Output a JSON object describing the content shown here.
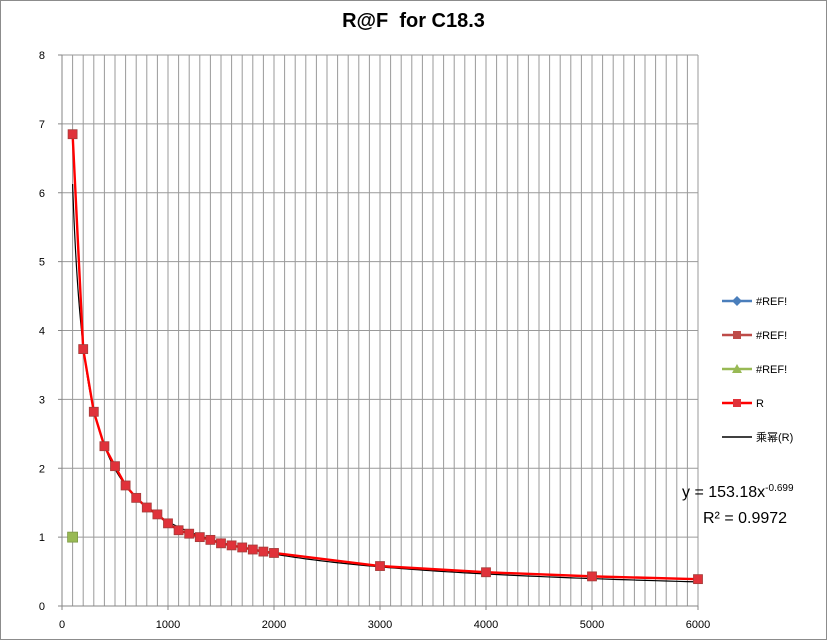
{
  "chart_data": {
    "type": "line",
    "title": "R@F  for C18.3",
    "xlim": [
      0,
      6000
    ],
    "ylim": [
      0,
      8
    ],
    "x_ticks": [
      0,
      1000,
      2000,
      3000,
      4000,
      5000,
      6000
    ],
    "y_ticks": [
      0,
      1,
      2,
      3,
      4,
      5,
      6,
      7,
      8
    ],
    "grid": {
      "vertical_every": 100,
      "horizontal_every": 1
    },
    "legend_placement": "right",
    "series": [
      {
        "name": "#REF!",
        "color": "#4a7ebb",
        "marker": "diamond",
        "x": [],
        "y": []
      },
      {
        "name": "#REF!",
        "color": "#be4b48",
        "marker": "square",
        "x": [],
        "y": []
      },
      {
        "name": "#REF!",
        "color": "#98b954",
        "marker": "triangle",
        "x": [
          100
        ],
        "y": [
          1.0
        ]
      },
      {
        "name": "R",
        "color": "#ff0000",
        "marker": "square",
        "x": [
          100,
          200,
          300,
          400,
          500,
          600,
          700,
          800,
          900,
          1000,
          1100,
          1200,
          1300,
          1400,
          1500,
          1600,
          1700,
          1800,
          1900,
          2000,
          3000,
          4000,
          5000,
          6000
        ],
        "y": [
          6.85,
          3.73,
          2.82,
          2.32,
          2.03,
          1.75,
          1.57,
          1.43,
          1.33,
          1.2,
          1.1,
          1.05,
          1.0,
          0.96,
          0.91,
          0.88,
          0.85,
          0.82,
          0.79,
          0.77,
          0.58,
          0.49,
          0.43,
          0.39
        ]
      }
    ],
    "trendline": {
      "name": "乘幂(R)",
      "type": "power",
      "color": "#000000",
      "a": 153.18,
      "b": -0.699,
      "x_range": [
        100,
        6000
      ],
      "equation_prefix": "y = 153.18x",
      "equation_exponent": "-0.699",
      "r_squared_text": "R² = 0.9972"
    }
  }
}
